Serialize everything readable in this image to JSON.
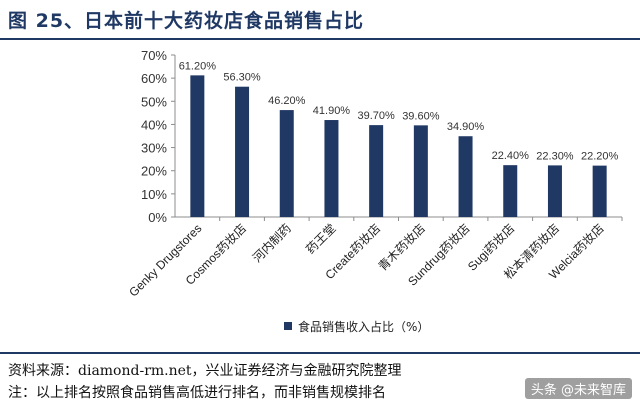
{
  "figure": {
    "title": "图 25、日本前十大药妆店食品销售占比"
  },
  "chart_data": {
    "type": "bar",
    "categories": [
      "Genky Drugstores",
      "Cosmos药妆店",
      "河内制药",
      "药王堂",
      "Create药妆店",
      "青木药妆店",
      "Sundrug药妆店",
      "Sugi药妆店",
      "松本清药妆店",
      "Welcia药妆店"
    ],
    "series": [
      {
        "name": "食品销售收入占比（%）",
        "values": [
          61.2,
          56.3,
          46.2,
          41.9,
          39.7,
          39.6,
          34.9,
          22.4,
          22.3,
          22.2
        ],
        "data_labels": [
          "61.20%",
          "56.30%",
          "46.20%",
          "41.90%",
          "39.70%",
          "39.60%",
          "34.90%",
          "22.40%",
          "22.30%",
          "22.20%"
        ]
      }
    ],
    "y_ticks": [
      "0%",
      "10%",
      "20%",
      "30%",
      "40%",
      "50%",
      "60%",
      "70%"
    ],
    "ylim": [
      0,
      70
    ],
    "grid": false,
    "legend_position": "bottom",
    "colors": {
      "bar": "#203864",
      "axis": "#8c8c8c",
      "text": "#333333"
    }
  },
  "notes": {
    "source": "资料来源：diamond-rm.net，兴业证券经济与金融研究院整理",
    "note": "注：以上排名按照食品销售高低进行排名，而非销售规模排名",
    "watermark": "头条 @未来智库"
  }
}
